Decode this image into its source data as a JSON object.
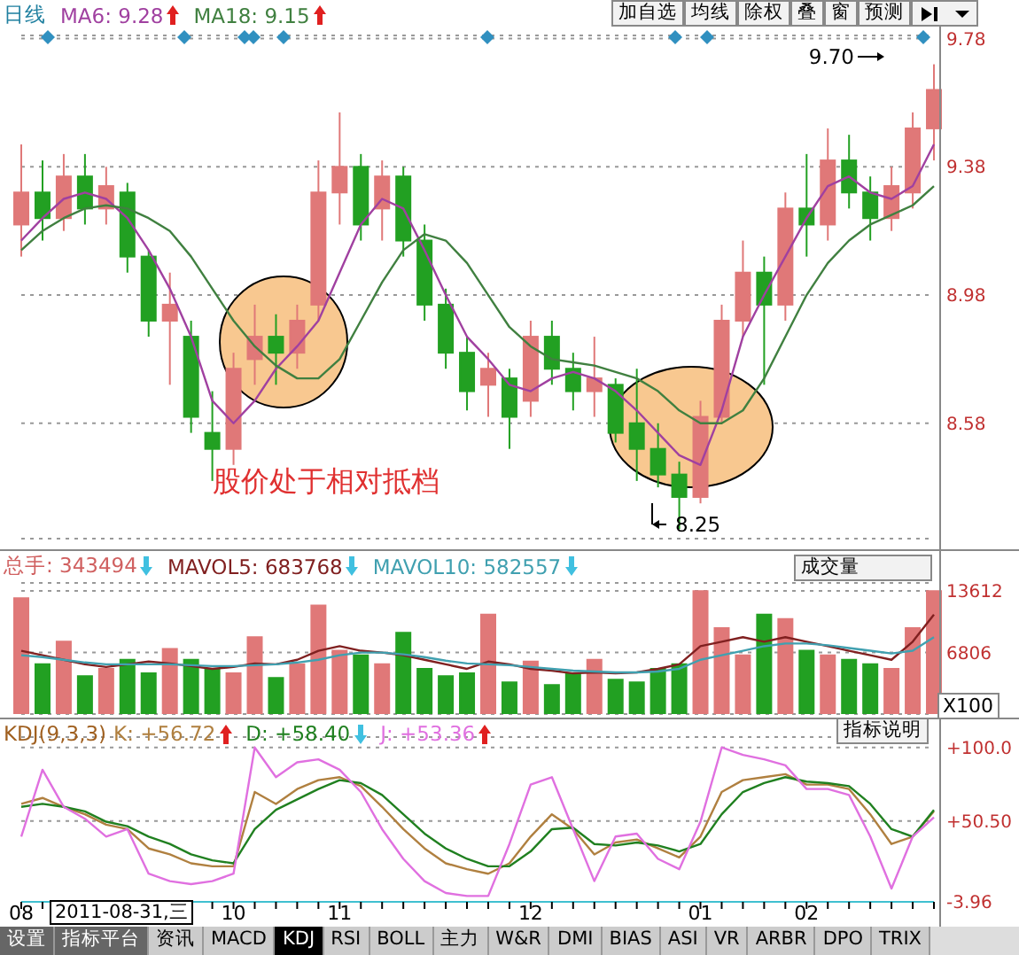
{
  "chart_data": [
    {
      "type": "candlestick",
      "legend": "top left",
      "grid": "y",
      "tick_labels": "y",
      "categories": [
        "08",
        null,
        null,
        null,
        null,
        null,
        null,
        null,
        null,
        null,
        "10",
        null,
        null,
        null,
        null,
        "11",
        null,
        null,
        null,
        null,
        null,
        null,
        null,
        null,
        "12",
        null,
        null,
        null,
        null,
        null,
        null,
        null,
        "01",
        null,
        null,
        null,
        null,
        "02",
        null,
        null,
        null,
        null,
        null,
        null
      ],
      "ohlc": [
        [
          9.2,
          9.45,
          9.1,
          9.3
        ],
        [
          9.3,
          9.4,
          9.15,
          9.22
        ],
        [
          9.22,
          9.42,
          9.18,
          9.35
        ],
        [
          9.35,
          9.42,
          9.2,
          9.25
        ],
        [
          9.25,
          9.38,
          9.2,
          9.32
        ],
        [
          9.3,
          9.33,
          9.05,
          9.1
        ],
        [
          9.1,
          9.12,
          8.85,
          8.9
        ],
        [
          8.9,
          9.05,
          8.7,
          8.95
        ],
        [
          8.85,
          8.9,
          8.55,
          8.6
        ],
        [
          8.55,
          8.68,
          8.4,
          8.5
        ],
        [
          8.5,
          8.8,
          8.45,
          8.75
        ],
        [
          8.78,
          8.95,
          8.7,
          8.85
        ],
        [
          8.85,
          8.92,
          8.7,
          8.8
        ],
        [
          8.8,
          8.95,
          8.75,
          8.9
        ],
        [
          8.95,
          9.4,
          8.9,
          9.3
        ],
        [
          9.3,
          9.55,
          9.2,
          9.38
        ],
        [
          9.38,
          9.42,
          9.15,
          9.2
        ],
        [
          9.25,
          9.4,
          9.15,
          9.35
        ],
        [
          9.35,
          9.38,
          9.1,
          9.15
        ],
        [
          9.15,
          9.2,
          8.9,
          8.95
        ],
        [
          8.95,
          9.0,
          8.75,
          8.8
        ],
        [
          8.8,
          8.85,
          8.62,
          8.68
        ],
        [
          8.7,
          8.8,
          8.6,
          8.75
        ],
        [
          8.72,
          8.75,
          8.5,
          8.6
        ],
        [
          8.65,
          8.9,
          8.6,
          8.85
        ],
        [
          8.85,
          8.9,
          8.7,
          8.75
        ],
        [
          8.75,
          8.8,
          8.62,
          8.68
        ],
        [
          8.68,
          8.85,
          8.6,
          8.72
        ],
        [
          8.7,
          8.72,
          8.52,
          8.55
        ],
        [
          8.58,
          8.75,
          8.4,
          8.5
        ],
        [
          8.5,
          8.58,
          8.38,
          8.42
        ],
        [
          8.42,
          8.46,
          8.25,
          8.35
        ],
        [
          8.35,
          8.65,
          8.33,
          8.6
        ],
        [
          8.6,
          8.95,
          8.58,
          8.9
        ],
        [
          8.9,
          9.15,
          8.85,
          9.05
        ],
        [
          9.05,
          9.1,
          8.7,
          8.95
        ],
        [
          8.95,
          9.3,
          8.9,
          9.25
        ],
        [
          9.25,
          9.42,
          9.1,
          9.2
        ],
        [
          9.2,
          9.5,
          9.15,
          9.4
        ],
        [
          9.4,
          9.48,
          9.25,
          9.3
        ],
        [
          9.3,
          9.35,
          9.15,
          9.22
        ],
        [
          9.22,
          9.38,
          9.18,
          9.32
        ],
        [
          9.3,
          9.55,
          9.25,
          9.5
        ],
        [
          9.5,
          9.7,
          9.4,
          9.62
        ]
      ],
      "colors": [
        "#e07878",
        "#22a022",
        "#e07878",
        "#22a022",
        "#e07878",
        "#22a022",
        "#22a022",
        "#e07878",
        "#22a022",
        "#22a022",
        "#e07878",
        "#e07878",
        "#22a022",
        "#e07878",
        "#e07878",
        "#e07878",
        "#22a022",
        "#e07878",
        "#22a022",
        "#22a022",
        "#22a022",
        "#22a022",
        "#e07878",
        "#22a022",
        "#e07878",
        "#22a022",
        "#22a022",
        "#e07878",
        "#22a022",
        "#22a022",
        "#22a022",
        "#22a022",
        "#e07878",
        "#e07878",
        "#e07878",
        "#22a022",
        "#e07878",
        "#22a022",
        "#e07878",
        "#22a022",
        "#22a022",
        "#e07878",
        "#e07878",
        "#e07878"
      ],
      "series": [
        {
          "name": "MA6: 9.28",
          "type": "line",
          "color": "#a040a0",
          "values": [
            9.15,
            9.22,
            9.28,
            9.3,
            9.28,
            9.22,
            9.12,
            9.0,
            8.85,
            8.65,
            8.58,
            8.65,
            8.75,
            8.82,
            8.9,
            9.05,
            9.2,
            9.28,
            9.25,
            9.12,
            8.98,
            8.85,
            8.78,
            8.7,
            8.68,
            8.72,
            8.74,
            8.72,
            8.68,
            8.62,
            8.55,
            8.48,
            8.45,
            8.62,
            8.85,
            8.98,
            9.1,
            9.22,
            9.32,
            9.35,
            9.3,
            9.28,
            9.32,
            9.45
          ]
        },
        {
          "name": "MA18: 9.15",
          "type": "line",
          "color": "#408040",
          "values": [
            9.12,
            9.18,
            9.22,
            9.25,
            9.26,
            9.25,
            9.22,
            9.18,
            9.1,
            9.0,
            8.9,
            8.82,
            8.76,
            8.72,
            8.72,
            8.78,
            8.9,
            9.02,
            9.12,
            9.17,
            9.15,
            9.08,
            8.98,
            8.88,
            8.82,
            8.78,
            8.77,
            8.76,
            8.74,
            8.72,
            8.68,
            8.62,
            8.58,
            8.58,
            8.62,
            8.72,
            8.85,
            8.98,
            9.08,
            9.15,
            9.2,
            9.23,
            9.26,
            9.32
          ]
        }
      ],
      "ylim": [
        8.22,
        9.79
      ],
      "yticks": [
        8.58,
        8.98,
        9.38,
        9.78
      ],
      "annotations": [
        "日线",
        "股价处于相对抵档",
        "加自选",
        "均线",
        "除权",
        "叠",
        "窗",
        "预测",
        "9.70",
        "8.25"
      ]
    },
    {
      "type": "bar",
      "legend": "top left",
      "grid": "y",
      "tick_labels": "y",
      "categories": [
        "08",
        null,
        null,
        null,
        null,
        null,
        null,
        null,
        null,
        null,
        "10",
        null,
        null,
        null,
        null,
        "11",
        null,
        null,
        null,
        null,
        null,
        null,
        null,
        null,
        "12",
        null,
        null,
        null,
        null,
        null,
        null,
        null,
        "01",
        null,
        null,
        null,
        null,
        "02",
        null,
        null,
        null,
        null,
        null,
        null
      ],
      "series": [
        {
          "name": "总手: 343494",
          "type": "bar",
          "color": "#d06060",
          "colors": [
            "#e07878",
            "#22a022",
            "#e07878",
            "#22a022",
            "#e07878",
            "#22a022",
            "#22a022",
            "#e07878",
            "#22a022",
            "#22a022",
            "#e07878",
            "#e07878",
            "#22a022",
            "#e07878",
            "#e07878",
            "#e07878",
            "#22a022",
            "#e07878",
            "#22a022",
            "#22a022",
            "#22a022",
            "#22a022",
            "#e07878",
            "#22a022",
            "#e07878",
            "#22a022",
            "#22a022",
            "#e07878",
            "#22a022",
            "#22a022",
            "#22a022",
            "#22a022",
            "#e07878",
            "#e07878",
            "#e07878",
            "#22a022",
            "#e07878",
            "#22a022",
            "#e07878",
            "#22a022",
            "#22a022",
            "#e07878",
            "#e07878",
            "#e07878"
          ],
          "values": [
            12800,
            5500,
            8000,
            4200,
            5000,
            6000,
            4500,
            7200,
            6000,
            5000,
            4500,
            8500,
            4000,
            5500,
            12000,
            7000,
            6500,
            5500,
            9000,
            5000,
            4200,
            4500,
            11000,
            3500,
            5800,
            3200,
            4500,
            6000,
            3800,
            3500,
            5000,
            5500,
            13600,
            9500,
            6500,
            11000,
            10500,
            7000,
            6500,
            6000,
            5500,
            5000,
            9500,
            13600
          ]
        },
        {
          "name": "MAVOL5: 683768",
          "type": "line",
          "color": "#802020",
          "values": [
            7000,
            6500,
            6000,
            5500,
            5200,
            5500,
            5800,
            5600,
            5300,
            5000,
            5200,
            5600,
            5500,
            6000,
            7000,
            7500,
            7000,
            6800,
            6500,
            6000,
            5500,
            5000,
            5800,
            5500,
            5000,
            4800,
            4500,
            4600,
            4500,
            4600,
            5000,
            5500,
            7500,
            8000,
            8500,
            8000,
            8500,
            8000,
            7500,
            7000,
            6500,
            6000,
            8000,
            11000
          ]
        },
        {
          "name": "MAVOL10: 582557",
          "type": "line",
          "color": "#40a0b0",
          "values": [
            6500,
            6300,
            6000,
            5700,
            5500,
            5500,
            5500,
            5500,
            5400,
            5300,
            5300,
            5400,
            5500,
            5700,
            6000,
            6500,
            6800,
            6800,
            6600,
            6300,
            5900,
            5600,
            5500,
            5400,
            5200,
            5000,
            4800,
            4700,
            4600,
            4600,
            4700,
            5000,
            6000,
            6500,
            7000,
            7500,
            7800,
            7800,
            7600,
            7300,
            7000,
            6700,
            7000,
            8500
          ]
        }
      ],
      "ylim": [
        0,
        14500
      ],
      "yticks": [
        6806,
        13612
      ],
      "annotations": [
        "成交量",
        "X100"
      ]
    },
    {
      "type": "line",
      "legend": "top left",
      "grid": "y",
      "title": "KDJ(9,3,3)",
      "categories": [
        "08",
        null,
        null,
        null,
        null,
        null,
        null,
        null,
        null,
        null,
        "10",
        null,
        null,
        null,
        null,
        "11",
        null,
        null,
        null,
        null,
        null,
        null,
        null,
        null,
        "12",
        null,
        null,
        null,
        null,
        null,
        null,
        null,
        "01",
        null,
        null,
        null,
        null,
        "02",
        null,
        null,
        null,
        null,
        null,
        null
      ],
      "series": [
        {
          "name": "K: +56.72",
          "color": "#b08040",
          "values": [
            62,
            66,
            60,
            55,
            48,
            45,
            32,
            28,
            22,
            20,
            20,
            70,
            62,
            72,
            78,
            80,
            74,
            60,
            45,
            32,
            22,
            18,
            15,
            22,
            40,
            55,
            45,
            28,
            36,
            38,
            32,
            26,
            40,
            70,
            78,
            80,
            82,
            75,
            75,
            72,
            55,
            35,
            40,
            57
          ]
        },
        {
          "name": "D: +58.40",
          "color": "#208020",
          "values": [
            60,
            62,
            60,
            57,
            50,
            47,
            40,
            35,
            28,
            24,
            22,
            45,
            58,
            65,
            72,
            78,
            76,
            68,
            55,
            42,
            32,
            25,
            20,
            20,
            30,
            45,
            46,
            35,
            34,
            36,
            34,
            30,
            35,
            55,
            70,
            76,
            80,
            77,
            76,
            74,
            62,
            45,
            40,
            58
          ]
        },
        {
          "name": "J: +53.36",
          "color": "#e070e0",
          "values": [
            40,
            85,
            60,
            52,
            40,
            45,
            15,
            10,
            8,
            10,
            15,
            100,
            80,
            90,
            92,
            85,
            70,
            45,
            25,
            10,
            2,
            0,
            0,
            35,
            75,
            80,
            45,
            10,
            40,
            42,
            25,
            18,
            50,
            100,
            95,
            92,
            88,
            72,
            72,
            68,
            40,
            5,
            40,
            53
          ]
        }
      ],
      "ylim": [
        -3.96,
        107
      ],
      "yticks": [
        {
          "value": -3.96,
          "label": "-3.96"
        },
        {
          "value": 50.5,
          "label": "+50.50"
        },
        {
          "value": 100,
          "label": "+100.0"
        }
      ],
      "annotations": [
        "2011-08-31,三",
        "指标说明",
        "设置",
        "指标平台",
        "资讯",
        "MACD",
        "KDJ",
        "RSI",
        "BOLL",
        "主力",
        "W&R",
        "DMI",
        "BIAS",
        "ASI",
        "VR",
        "ARBR",
        "DPO",
        "TRIX"
      ]
    }
  ]
}
